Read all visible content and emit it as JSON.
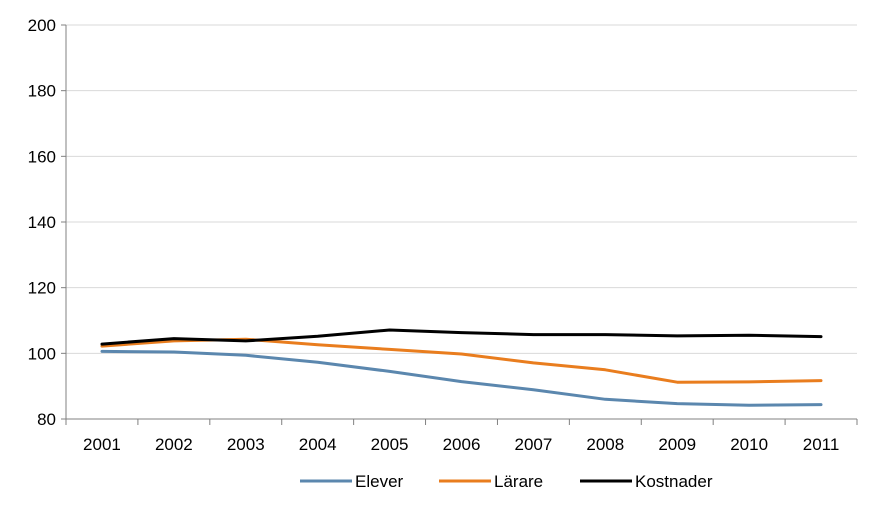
{
  "chart_data": {
    "type": "line",
    "title": "",
    "xlabel": "",
    "ylabel": "",
    "categories": [
      "2001",
      "2002",
      "2003",
      "2004",
      "2005",
      "2006",
      "2007",
      "2008",
      "2009",
      "2010",
      "2011"
    ],
    "ylim": [
      80,
      200
    ],
    "yticks": [
      "80",
      "100",
      "120",
      "140",
      "160",
      "180",
      "200"
    ],
    "grid": true,
    "legend_position": "bottom",
    "series": [
      {
        "name": "Elever",
        "color": "#5b87ae",
        "values": [
          100.6,
          100.4,
          99.4,
          97.3,
          94.5,
          91.4,
          88.9,
          86.0,
          84.7,
          84.2,
          84.4
        ]
      },
      {
        "name": "Lärare",
        "color": "#e97d1e",
        "values": [
          102.2,
          103.8,
          104.3,
          102.6,
          101.2,
          99.8,
          97.1,
          95.0,
          91.2,
          91.3,
          91.7
        ]
      },
      {
        "name": "Kostnader",
        "color": "#000000",
        "values": [
          102.8,
          104.5,
          103.8,
          105.2,
          107.1,
          106.3,
          105.7,
          105.7,
          105.3,
          105.5,
          105.1
        ]
      }
    ]
  }
}
